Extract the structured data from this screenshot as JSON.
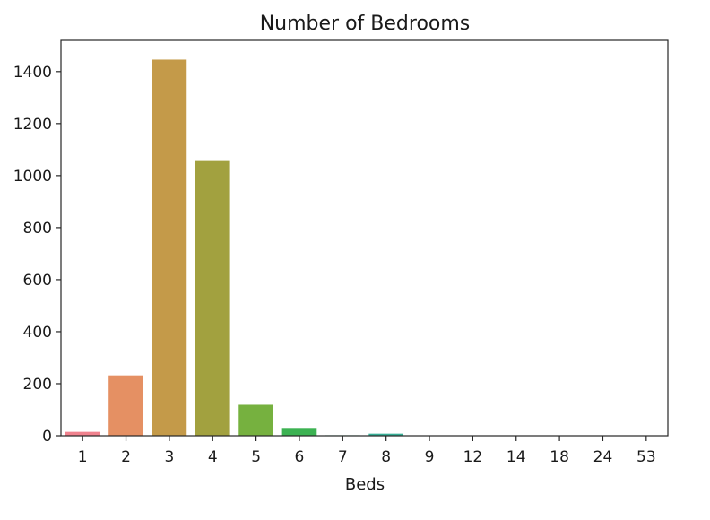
{
  "chart_data": {
    "type": "bar",
    "title": "Number of Bedrooms",
    "xlabel": "Beds",
    "ylabel": "",
    "categories": [
      "1",
      "2",
      "3",
      "4",
      "5",
      "6",
      "7",
      "8",
      "9",
      "12",
      "14",
      "18",
      "24",
      "53"
    ],
    "values": [
      15,
      232,
      1446,
      1056,
      119,
      30,
      2,
      8,
      1,
      1,
      1,
      1,
      1,
      1
    ],
    "ylim": [
      0,
      1520
    ],
    "yticks": [
      0,
      200,
      400,
      600,
      800,
      1000,
      1200,
      1400
    ],
    "grid": false,
    "legend": "none",
    "colors": [
      "#f0828e",
      "#e59063",
      "#c49a49",
      "#a2a13f",
      "#76b13f",
      "#3cb252",
      "#35b07f",
      "#37ae96",
      "#3aabab",
      "#3ca7c2",
      "#4a9fe6",
      "#9192f2",
      "#d47ff2",
      "#f27ac4"
    ]
  }
}
